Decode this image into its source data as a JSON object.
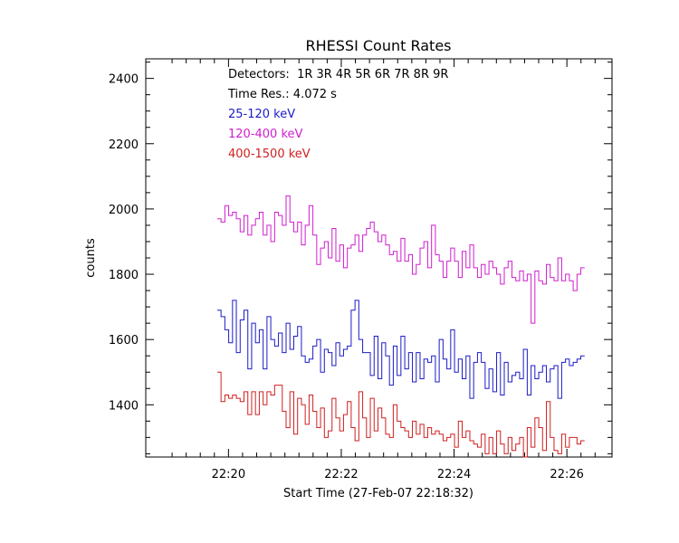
{
  "chart_data": {
    "type": "line",
    "title": "RHESSI Count Rates",
    "xlabel": "Start Time (27-Feb-07 22:18:32)",
    "ylabel": "counts",
    "xlim": [
      "22:18:32",
      "22:26:48"
    ],
    "ylim": [
      1240,
      2460
    ],
    "x_tick_labels": [
      "22:20",
      "22:22",
      "22:24",
      "22:26"
    ],
    "x_tick_values_min": [
      20,
      22,
      24,
      26
    ],
    "y_ticks": [
      1400,
      1600,
      1800,
      2000,
      2200,
      2400
    ],
    "annotations": {
      "detectors": "Detectors:  1R 3R 4R 5R 6R 7R 8R 9R",
      "time_res": "Time Res.: 4.072 s"
    },
    "x_start_min": 19.8,
    "x_step_s": 4.072,
    "series": [
      {
        "name": "25-120 keV",
        "color": "#1c1cc8",
        "values": [
          1690,
          1670,
          1630,
          1590,
          1720,
          1560,
          1660,
          1690,
          1510,
          1650,
          1590,
          1630,
          1510,
          1670,
          1600,
          1580,
          1620,
          1560,
          1650,
          1570,
          1610,
          1640,
          1550,
          1530,
          1540,
          1580,
          1600,
          1500,
          1570,
          1560,
          1520,
          1590,
          1550,
          1570,
          1580,
          1690,
          1720,
          1600,
          1560,
          1560,
          1490,
          1610,
          1480,
          1590,
          1550,
          1460,
          1580,
          1490,
          1610,
          1510,
          1560,
          1470,
          1560,
          1480,
          1540,
          1530,
          1550,
          1470,
          1600,
          1540,
          1510,
          1630,
          1500,
          1540,
          1480,
          1550,
          1420,
          1530,
          1560,
          1530,
          1450,
          1510,
          1440,
          1560,
          1430,
          1530,
          1470,
          1490,
          1500,
          1480,
          1570,
          1430,
          1520,
          1480,
          1500,
          1520,
          1470,
          1510,
          1520,
          1420,
          1530,
          1540,
          1520,
          1530,
          1540,
          1550
        ]
      },
      {
        "name": "120-400 keV",
        "color": "#d01ed0",
        "values": [
          1970,
          1960,
          2010,
          1980,
          1990,
          1970,
          1930,
          1980,
          1920,
          1950,
          1970,
          1990,
          1920,
          1950,
          1900,
          1990,
          1980,
          1950,
          2040,
          1960,
          1930,
          1960,
          1890,
          1950,
          2010,
          1920,
          1830,
          1880,
          1900,
          1850,
          1940,
          1840,
          1890,
          1820,
          1880,
          1890,
          1920,
          1870,
          1920,
          1940,
          1960,
          1930,
          1900,
          1920,
          1890,
          1860,
          1870,
          1840,
          1910,
          1840,
          1860,
          1800,
          1830,
          1880,
          1900,
          1820,
          1950,
          1860,
          1840,
          1790,
          1840,
          1880,
          1840,
          1790,
          1870,
          1820,
          1890,
          1820,
          1790,
          1830,
          1800,
          1840,
          1820,
          1800,
          1770,
          1820,
          1840,
          1790,
          1780,
          1810,
          1780,
          1800,
          1650,
          1810,
          1780,
          1770,
          1830,
          1790,
          1780,
          1850,
          1780,
          1800,
          1780,
          1750,
          1800,
          1820
        ]
      },
      {
        "name": "400-1500 keV",
        "color": "#d02020",
        "values": [
          1500,
          1410,
          1430,
          1420,
          1430,
          1420,
          1410,
          1440,
          1370,
          1440,
          1370,
          1440,
          1400,
          1440,
          1430,
          1460,
          1460,
          1380,
          1330,
          1440,
          1310,
          1420,
          1400,
          1340,
          1430,
          1380,
          1330,
          1390,
          1300,
          1320,
          1420,
          1360,
          1320,
          1370,
          1410,
          1330,
          1290,
          1440,
          1360,
          1300,
          1420,
          1320,
          1390,
          1360,
          1310,
          1300,
          1400,
          1350,
          1330,
          1320,
          1300,
          1350,
          1310,
          1340,
          1300,
          1330,
          1310,
          1320,
          1310,
          1290,
          1300,
          1310,
          1270,
          1350,
          1300,
          1320,
          1290,
          1280,
          1270,
          1310,
          1250,
          1300,
          1250,
          1320,
          1280,
          1250,
          1300,
          1260,
          1280,
          1300,
          1240,
          1330,
          1270,
          1360,
          1330,
          1260,
          1410,
          1300,
          1260,
          1250,
          1310,
          1270,
          1300,
          1300,
          1280,
          1290
        ]
      }
    ]
  }
}
